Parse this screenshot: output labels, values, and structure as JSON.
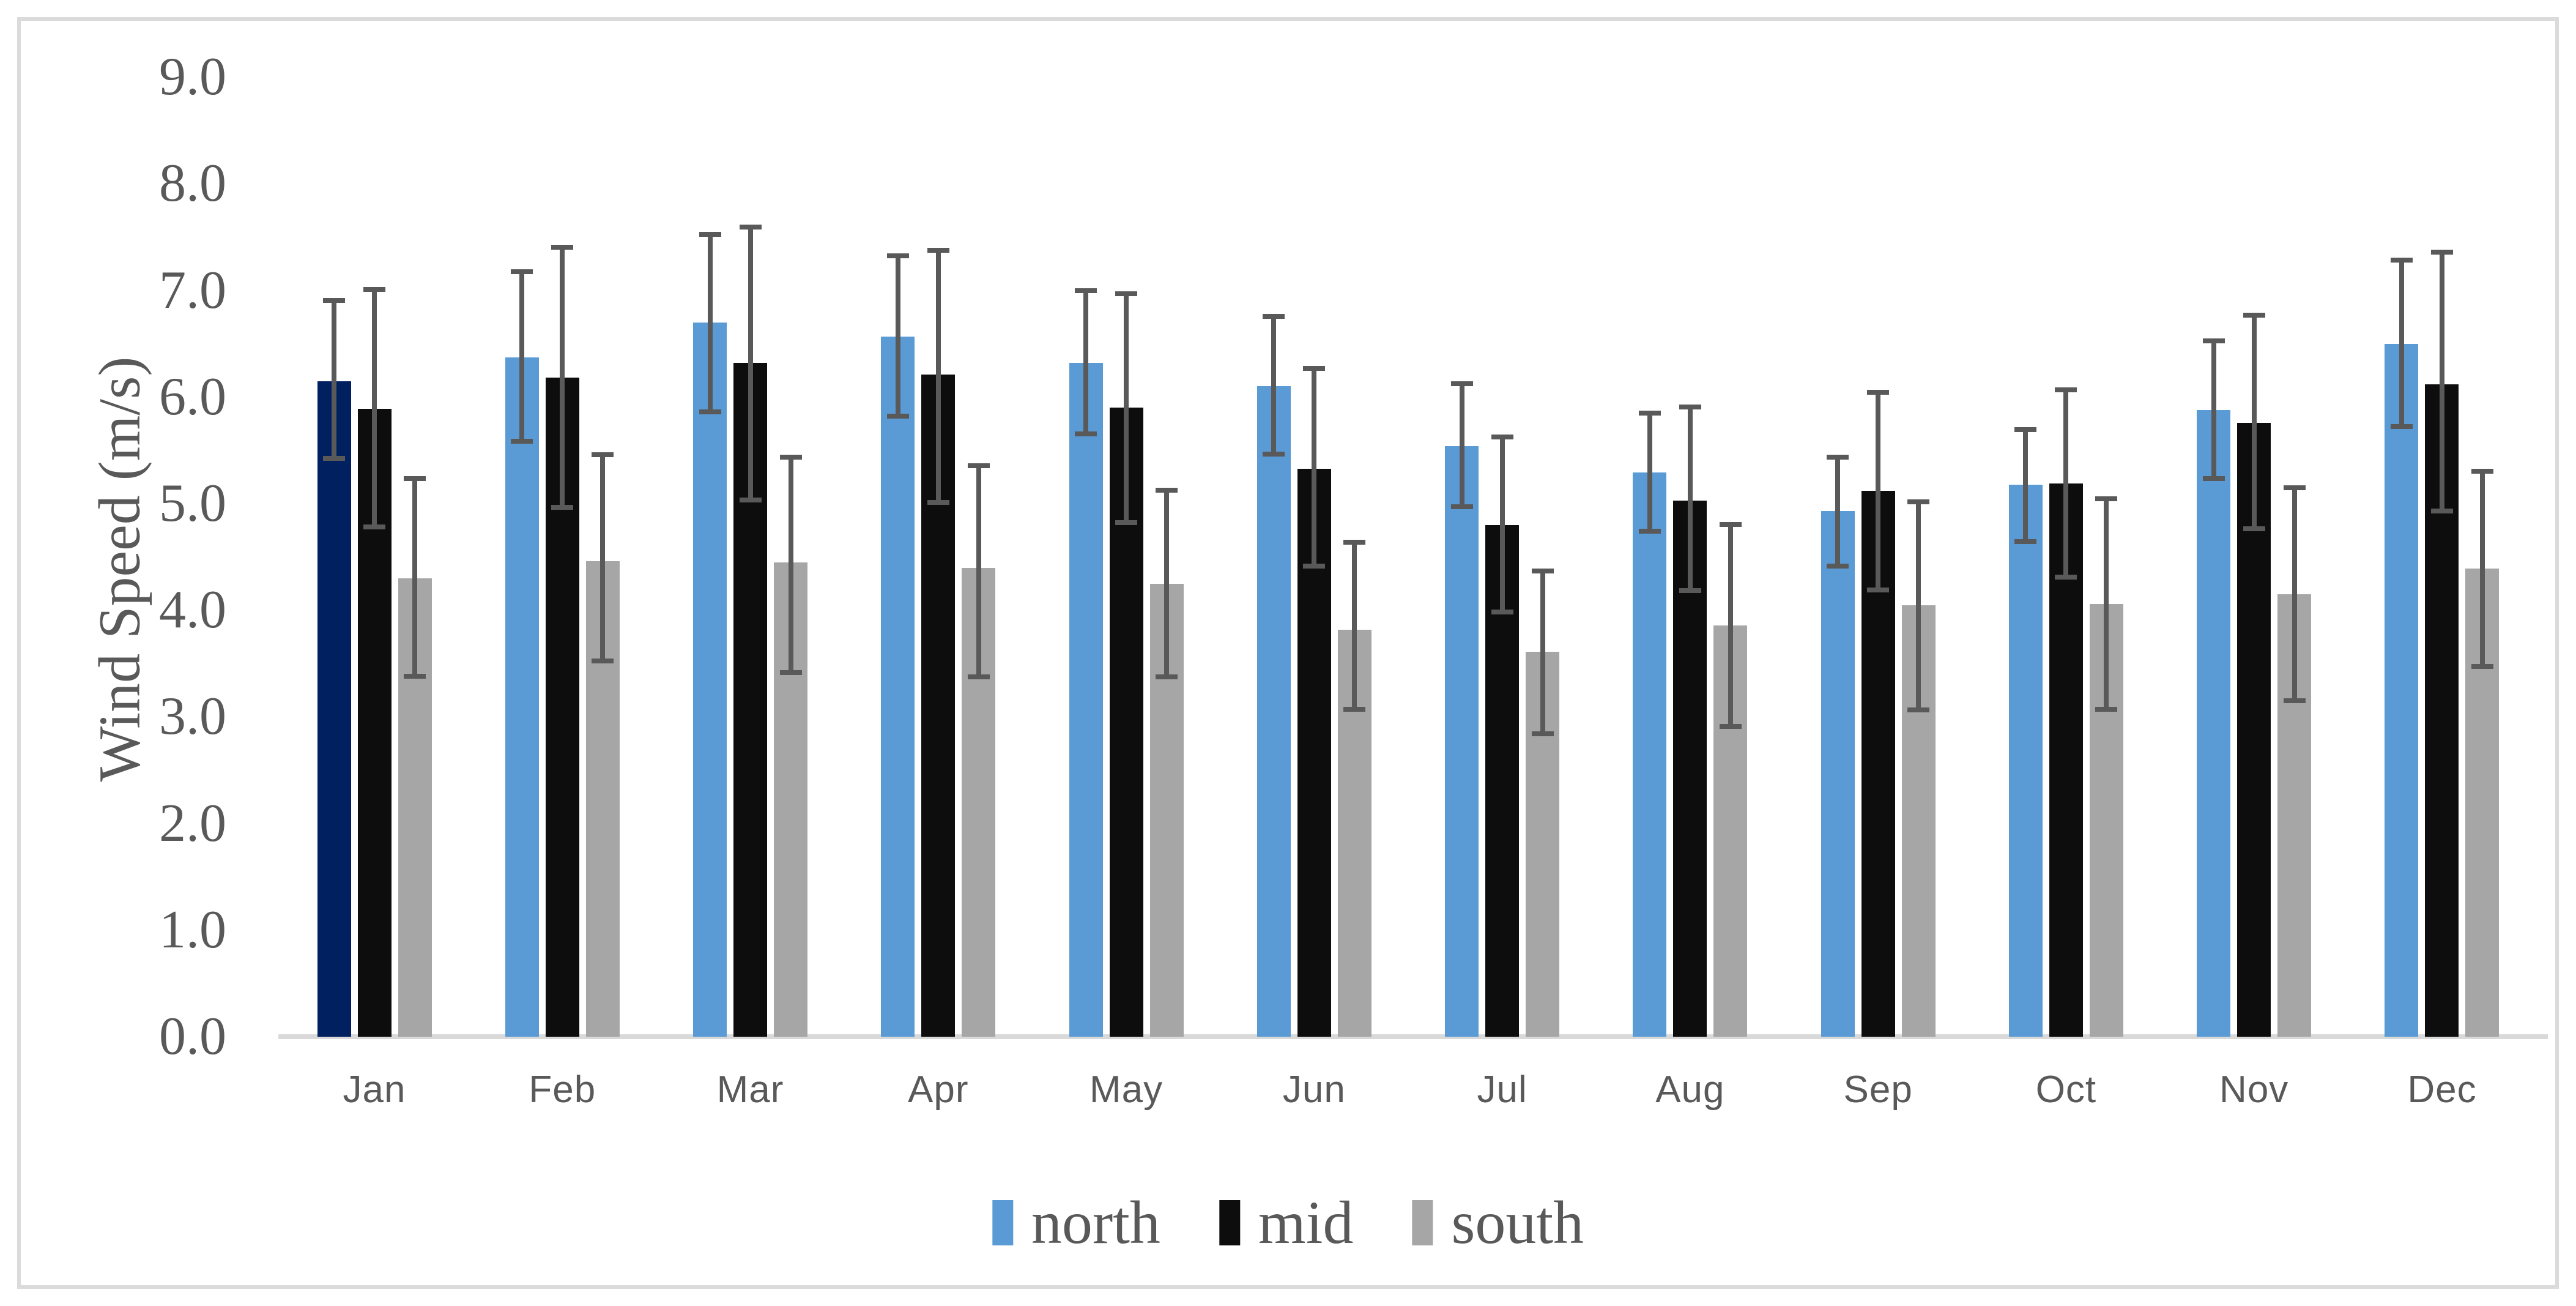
{
  "chart_data": {
    "type": "bar",
    "title": "",
    "ylabel": "Wind Speed (m/s)",
    "xlabel": "",
    "ylim": [
      0,
      9
    ],
    "ytick_step": 1.0,
    "yticks": [
      "9.0",
      "8.0",
      "7.0",
      "6.0",
      "5.0",
      "4.0",
      "3.0",
      "2.0",
      "1.0",
      "0.0"
    ],
    "grid": false,
    "legend_position": "bottom-center",
    "error_bars": true,
    "categories": [
      "Jan",
      "Feb",
      "Mar",
      "Apr",
      "May",
      "Jun",
      "Jul",
      "Aug",
      "Sep",
      "Oct",
      "Nov",
      "Dec"
    ],
    "series": [
      {
        "name": "north",
        "color": "#5B9BD5",
        "point_colors": {
          "Jan": "#002060"
        },
        "values": [
          6.15,
          6.37,
          6.7,
          6.57,
          6.32,
          6.1,
          5.54,
          5.29,
          4.93,
          5.18,
          5.88,
          6.5
        ],
        "errors": [
          [
            5.4,
            6.93
          ],
          [
            5.56,
            7.2
          ],
          [
            5.84,
            7.55
          ],
          [
            5.8,
            7.35
          ],
          [
            5.63,
            7.02
          ],
          [
            5.44,
            6.78
          ],
          [
            4.95,
            6.15
          ],
          [
            4.72,
            5.87
          ],
          [
            4.39,
            5.46
          ],
          [
            4.62,
            5.72
          ],
          [
            5.21,
            6.55
          ],
          [
            5.7,
            7.31
          ]
        ]
      },
      {
        "name": "mid",
        "color": "#0D0D0D",
        "point_colors": {},
        "values": [
          5.89,
          6.18,
          6.32,
          6.21,
          5.9,
          5.33,
          4.8,
          5.03,
          5.12,
          5.19,
          5.76,
          6.12
        ],
        "errors": [
          [
            4.76,
            7.03
          ],
          [
            4.94,
            7.43
          ],
          [
            5.01,
            7.62
          ],
          [
            4.99,
            7.4
          ],
          [
            4.8,
            6.99
          ],
          [
            4.39,
            6.29
          ],
          [
            3.96,
            5.65
          ],
          [
            4.16,
            5.93
          ],
          [
            4.17,
            6.07
          ],
          [
            4.29,
            6.09
          ],
          [
            4.74,
            6.79
          ],
          [
            4.91,
            7.38
          ]
        ]
      },
      {
        "name": "south",
        "color": "#A6A6A6",
        "point_colors": {},
        "values": [
          4.3,
          4.46,
          4.45,
          4.4,
          4.25,
          3.82,
          3.61,
          3.86,
          4.05,
          4.06,
          4.15,
          4.39
        ],
        "errors": [
          [
            3.36,
            5.26
          ],
          [
            3.5,
            5.48
          ],
          [
            3.39,
            5.46
          ],
          [
            3.35,
            5.38
          ],
          [
            3.35,
            5.15
          ],
          [
            3.05,
            4.66
          ],
          [
            2.82,
            4.39
          ],
          [
            2.89,
            4.83
          ],
          [
            3.04,
            5.04
          ],
          [
            3.05,
            5.07
          ],
          [
            3.13,
            5.17
          ],
          [
            3.45,
            5.33
          ]
        ]
      }
    ],
    "style_colors": {
      "error_bar": "#595959",
      "axis_line": "#D9D9D9",
      "text": "#595959",
      "figure_border": "#DBDBDB",
      "background": "#FFFFFF"
    }
  }
}
